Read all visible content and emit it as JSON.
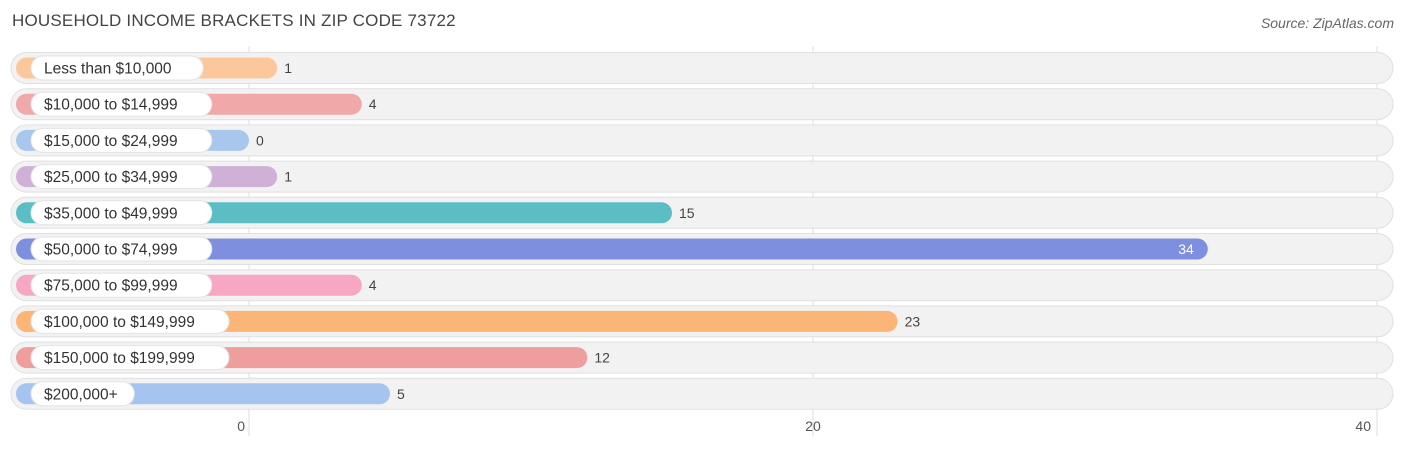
{
  "header": {
    "title": "HOUSEHOLD INCOME BRACKETS IN ZIP CODE 73722",
    "source": "Source: ZipAtlas.com"
  },
  "chart_data": {
    "type": "bar",
    "orientation": "horizontal",
    "title": "HOUSEHOLD INCOME BRACKETS IN ZIP CODE 73722",
    "categories": [
      "Less than $10,000",
      "$10,000 to $14,999",
      "$15,000 to $24,999",
      "$25,000 to $34,999",
      "$35,000 to $49,999",
      "$50,000 to $74,999",
      "$75,000 to $99,999",
      "$100,000 to $149,999",
      "$150,000 to $199,999",
      "$200,000+"
    ],
    "values": [
      1,
      4,
      0,
      1,
      15,
      34,
      4,
      23,
      12,
      5
    ],
    "colors": [
      "#fcc89b",
      "#f0a8a8",
      "#a9c6ec",
      "#cfb0d6",
      "#5bbec5",
      "#7f8fe0",
      "#f7a6c4",
      "#fbb577",
      "#ee9e9c",
      "#a5c4ef"
    ],
    "xlim": [
      0,
      40
    ],
    "ticks": [
      0,
      20,
      40
    ],
    "grid": true
  }
}
